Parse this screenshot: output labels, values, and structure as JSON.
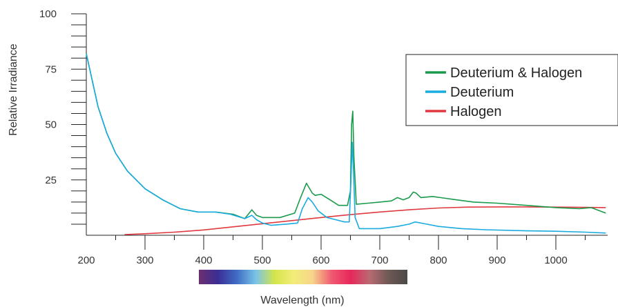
{
  "chart_data": {
    "type": "line",
    "xlabel": "Wavelength (nm)",
    "ylabel": "Relative Irradiance",
    "xlim": [
      190,
      1090
    ],
    "ylim": [
      0,
      100
    ],
    "x_ticks": [
      200,
      300,
      400,
      500,
      600,
      700,
      800,
      900,
      1000
    ],
    "y_ticks": [
      25,
      50,
      75,
      100
    ],
    "legend_placement": "top-right",
    "grid": false,
    "spectrum_bar": {
      "range": [
        390,
        740
      ],
      "colors": [
        "#6c2f6e",
        "#3a2e94",
        "#3f6dc4",
        "#79c3e8",
        "#d4e54a",
        "#f4ec7a",
        "#f6d48a",
        "#ef5a72",
        "#e8275a",
        "#b96a72",
        "#6e5955",
        "#4b4948"
      ]
    },
    "series": [
      {
        "name": "Deuterium & Halogen",
        "color": "#1a9a4b",
        "points": [
          [
            200,
            82
          ],
          [
            210,
            70
          ],
          [
            220,
            58
          ],
          [
            235,
            46
          ],
          [
            250,
            37
          ],
          [
            270,
            29
          ],
          [
            300,
            21
          ],
          [
            330,
            16
          ],
          [
            360,
            12
          ],
          [
            390,
            10.5
          ],
          [
            420,
            10.5
          ],
          [
            450,
            9.5
          ],
          [
            470,
            7.5
          ],
          [
            482,
            11.5
          ],
          [
            490,
            9
          ],
          [
            500,
            8
          ],
          [
            530,
            8
          ],
          [
            555,
            10
          ],
          [
            565,
            17
          ],
          [
            575,
            23.5
          ],
          [
            585,
            19
          ],
          [
            590,
            18
          ],
          [
            600,
            18.5
          ],
          [
            615,
            16
          ],
          [
            630,
            13.5
          ],
          [
            645,
            13.5
          ],
          [
            650,
            20
          ],
          [
            652,
            50
          ],
          [
            654,
            56
          ],
          [
            656,
            35
          ],
          [
            660,
            14
          ],
          [
            680,
            14.5
          ],
          [
            700,
            15
          ],
          [
            720,
            15.5
          ],
          [
            730,
            17
          ],
          [
            740,
            16
          ],
          [
            750,
            17
          ],
          [
            757,
            19.5
          ],
          [
            762,
            19
          ],
          [
            770,
            17
          ],
          [
            790,
            17.5
          ],
          [
            830,
            16
          ],
          [
            860,
            15
          ],
          [
            900,
            14.5
          ],
          [
            950,
            13.5
          ],
          [
            1000,
            12.5
          ],
          [
            1040,
            12
          ],
          [
            1060,
            12.5
          ],
          [
            1085,
            10
          ]
        ]
      },
      {
        "name": "Deuterium",
        "color": "#19aadf",
        "points": [
          [
            200,
            82
          ],
          [
            210,
            70
          ],
          [
            220,
            58
          ],
          [
            235,
            46
          ],
          [
            250,
            37
          ],
          [
            270,
            29
          ],
          [
            300,
            21
          ],
          [
            330,
            16
          ],
          [
            360,
            12
          ],
          [
            390,
            10.5
          ],
          [
            420,
            10.5
          ],
          [
            445,
            9.5
          ],
          [
            470,
            7.5
          ],
          [
            482,
            9
          ],
          [
            490,
            7
          ],
          [
            500,
            5.5
          ],
          [
            515,
            4.5
          ],
          [
            540,
            5
          ],
          [
            560,
            5.5
          ],
          [
            568,
            12
          ],
          [
            578,
            17
          ],
          [
            585,
            15
          ],
          [
            595,
            11
          ],
          [
            610,
            8
          ],
          [
            625,
            7
          ],
          [
            640,
            6
          ],
          [
            648,
            6
          ],
          [
            651,
            25
          ],
          [
            653,
            42
          ],
          [
            655,
            30
          ],
          [
            658,
            8
          ],
          [
            665,
            3
          ],
          [
            700,
            3
          ],
          [
            730,
            4
          ],
          [
            750,
            5
          ],
          [
            760,
            6
          ],
          [
            780,
            5
          ],
          [
            800,
            4
          ],
          [
            820,
            3.5
          ],
          [
            840,
            3
          ],
          [
            880,
            2.5
          ],
          [
            950,
            2
          ],
          [
            1000,
            1.8
          ],
          [
            1050,
            1.4
          ],
          [
            1085,
            1
          ]
        ]
      },
      {
        "name": "Halogen",
        "color": "#e0383f",
        "points": [
          [
            265,
            0.3
          ],
          [
            300,
            0.7
          ],
          [
            350,
            1.4
          ],
          [
            400,
            2.4
          ],
          [
            450,
            3.8
          ],
          [
            500,
            5.2
          ],
          [
            550,
            6.6
          ],
          [
            600,
            8
          ],
          [
            650,
            9.3
          ],
          [
            700,
            10.5
          ],
          [
            750,
            11.5
          ],
          [
            800,
            12.3
          ],
          [
            850,
            12.7
          ],
          [
            900,
            12.8
          ],
          [
            950,
            12.8
          ],
          [
            1000,
            12.7
          ],
          [
            1050,
            12.6
          ],
          [
            1085,
            12.5
          ]
        ]
      }
    ]
  }
}
